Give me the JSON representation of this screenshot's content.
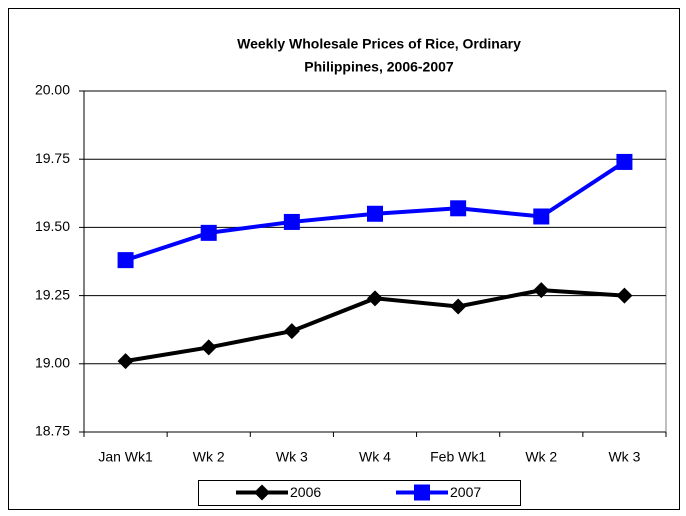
{
  "chart_data": {
    "type": "line",
    "title": "Weekly Wholesale Prices of Rice, Ordinary",
    "subtitle": "Philippines, 2006-2007",
    "categories": [
      "Jan Wk1",
      "Wk 2",
      "Wk 3",
      "Wk 4",
      "Feb Wk1",
      "Wk 2",
      "Wk 3"
    ],
    "series": [
      {
        "name": "2006",
        "color": "#000000",
        "marker": "diamond",
        "values": [
          19.01,
          19.06,
          19.12,
          19.24,
          19.21,
          19.27,
          19.25
        ]
      },
      {
        "name": "2007",
        "color": "#0000ff",
        "marker": "square",
        "values": [
          19.38,
          19.48,
          19.52,
          19.55,
          19.57,
          19.54,
          19.74
        ]
      }
    ],
    "ylim": [
      18.75,
      20
    ],
    "yticks": [
      {
        "value": 18.75,
        "label": "18.75"
      },
      {
        "value": 19,
        "label": "19.00"
      },
      {
        "value": 19.25,
        "label": "19.25"
      },
      {
        "value": 19.5,
        "label": "19.50"
      },
      {
        "value": 19.75,
        "label": "19.75"
      },
      {
        "value": 20,
        "label": "20.00"
      }
    ],
    "grid": true,
    "legend": "bottom"
  }
}
